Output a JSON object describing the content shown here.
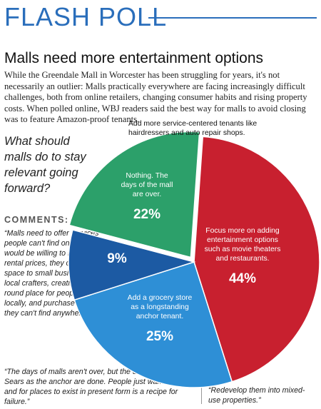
{
  "header": {
    "title": "FLASH POLL"
  },
  "headline": "Malls need more entertainment options",
  "intro": "While the Greendale Mall in Worcester has been struggling for years, it's not necessarily an outlier: Malls practically everywhere are facing increasingly difficult challenges, both from online retailers, changing consumer habits and rising property costs. When polled online, WBJ readers said the best way for malls to avoid closing was to feature Amazon-proof tenants.",
  "question": "What should malls do to stay relevant going forward?",
  "comments": {
    "label": "COMMENTS:",
    "quotes": [
      "“Malls need to offer services people can't find online. If they would be willing to lower their rental prices, they could offer space to small businesses and local crafters, creating a year round place for people to shop locally, and purchase products they can't find anywhere else.”",
      "“The days of malls aren't over, but the days of Macy's or Sears as the anchor are done. People just want more, and for places to exist in present form is a recipe for failure.”",
      "“Redevelop them into mixed-use properties.”"
    ]
  },
  "chart_data": {
    "type": "pie",
    "slices": [
      {
        "label": "Focus more on adding entertainment options such as movie theaters and restaurants.",
        "value": 44,
        "value_label": "44%",
        "color": "#c8202f"
      },
      {
        "label": "Add a grocery store as a longstanding anchor tenant.",
        "value": 25,
        "value_label": "25%",
        "color": "#2e8fd6"
      },
      {
        "label": "Add more service-centered tenants like hairdressers and auto repair shops.",
        "value": 9,
        "value_label": "9%",
        "color": "#1c5aa3"
      },
      {
        "label": "Nothing. The days of the mall are over.",
        "value": 22,
        "value_label": "22%",
        "color": "#2ca06a"
      }
    ]
  }
}
